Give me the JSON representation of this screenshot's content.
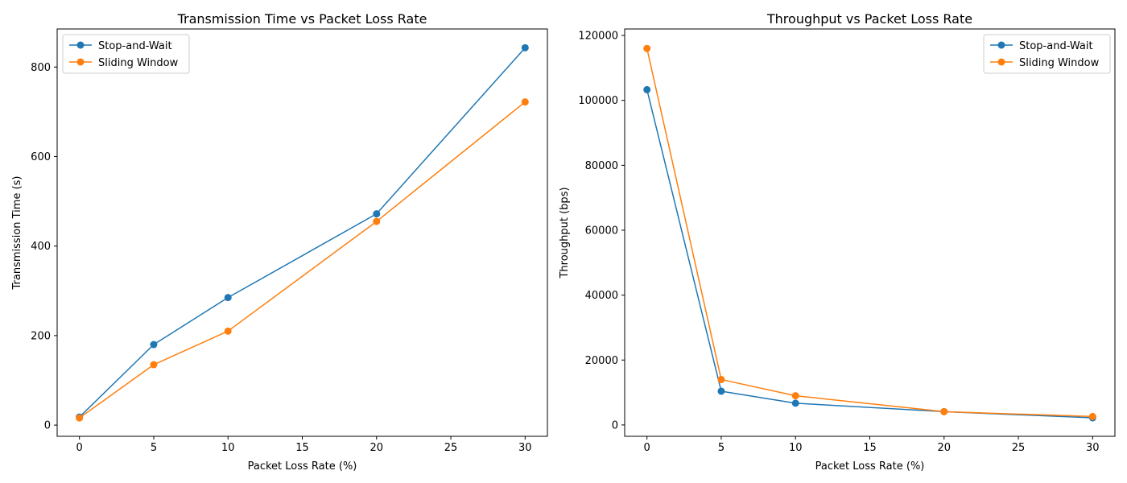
{
  "chart_data": [
    {
      "type": "line",
      "title": "Transmission Time vs Packet Loss Rate",
      "xlabel": "Packet Loss Rate (%)",
      "ylabel": "Transmission Time (s)",
      "x": [
        0,
        5,
        10,
        20,
        30
      ],
      "xlim": [
        -1.5,
        31.5
      ],
      "ylim": [
        -25,
        885
      ],
      "xticks": [
        0,
        5,
        10,
        15,
        20,
        25,
        30
      ],
      "yticks": [
        0,
        200,
        400,
        600,
        800
      ],
      "legend_position": "upper-left",
      "grid": false,
      "series": [
        {
          "name": "Stop-and-Wait",
          "color": "#1f77b4",
          "marker": "circle",
          "values": [
            18,
            180,
            285,
            472,
            843
          ]
        },
        {
          "name": "Sliding Window",
          "color": "#ff7f0e",
          "marker": "circle",
          "values": [
            16,
            135,
            210,
            455,
            722
          ]
        }
      ]
    },
    {
      "type": "line",
      "title": "Throughput vs Packet Loss Rate",
      "xlabel": "Packet Loss Rate (%)",
      "ylabel": "Throughput (bps)",
      "x": [
        0,
        5,
        10,
        20,
        30
      ],
      "xlim": [
        -1.5,
        31.5
      ],
      "ylim": [
        -3500,
        122000
      ],
      "xticks": [
        0,
        5,
        10,
        15,
        20,
        25,
        30
      ],
      "yticks": [
        0,
        20000,
        40000,
        60000,
        80000,
        100000,
        120000
      ],
      "legend_position": "upper-right",
      "grid": false,
      "series": [
        {
          "name": "Stop-and-Wait",
          "color": "#1f77b4",
          "marker": "circle",
          "values": [
            103300,
            10400,
            6700,
            4100,
            2200
          ]
        },
        {
          "name": "Sliding Window",
          "color": "#ff7f0e",
          "marker": "circle",
          "values": [
            116000,
            14000,
            9000,
            4100,
            2600
          ]
        }
      ]
    }
  ]
}
